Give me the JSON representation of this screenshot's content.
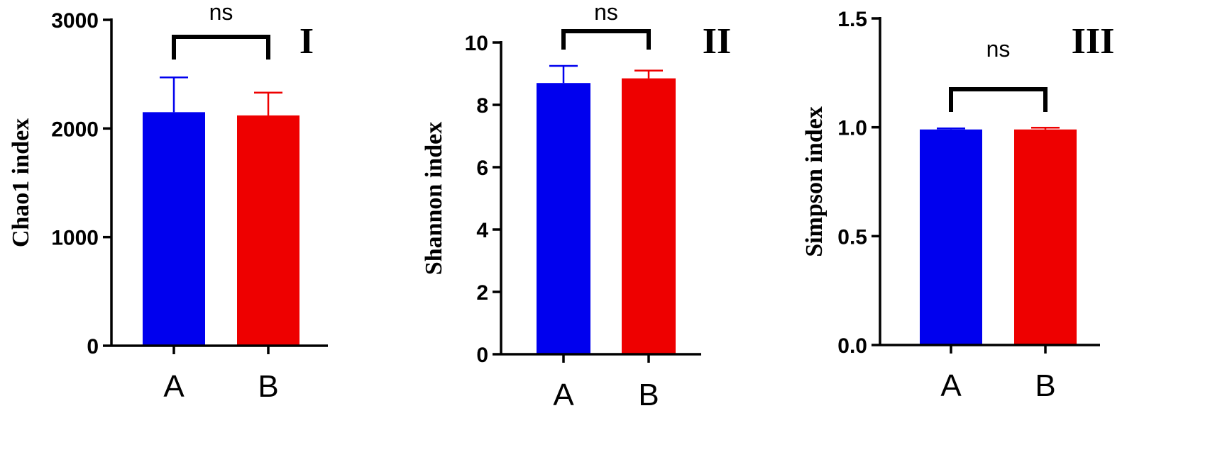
{
  "chart_data": [
    {
      "type": "bar",
      "panel_label": "I",
      "ylabel": "Chao1 index",
      "ylim": [
        0,
        3000
      ],
      "yticks": [
        0,
        1000,
        2000,
        3000
      ],
      "ytick_labels": [
        "0",
        "1000",
        "2000",
        "3000"
      ],
      "categories": [
        "A",
        "B"
      ],
      "values": [
        2150,
        2120
      ],
      "errors": [
        320,
        210
      ],
      "colors": [
        "#0000ee",
        "#ee0000"
      ],
      "significance": {
        "text": "ns",
        "between": [
          "A",
          "B"
        ]
      },
      "grid": false
    },
    {
      "type": "bar",
      "panel_label": "II",
      "ylabel": "Shannon index",
      "ylim": [
        0,
        10
      ],
      "yticks": [
        0,
        2,
        4,
        6,
        8,
        10
      ],
      "ytick_labels": [
        "0",
        "2",
        "4",
        "6",
        "8",
        "10"
      ],
      "categories": [
        "A",
        "B"
      ],
      "values": [
        8.7,
        8.85
      ],
      "errors": [
        0.55,
        0.25
      ],
      "colors": [
        "#0000ee",
        "#ee0000"
      ],
      "significance": {
        "text": "ns",
        "between": [
          "A",
          "B"
        ]
      },
      "grid": false
    },
    {
      "type": "bar",
      "panel_label": "III",
      "ylabel": "Simpson index",
      "ylim": [
        0,
        1.5
      ],
      "yticks": [
        0,
        0.5,
        1.0,
        1.5
      ],
      "ytick_labels": [
        "0.0",
        "0.5",
        "1.0",
        "1.5"
      ],
      "categories": [
        "A",
        "B"
      ],
      "values": [
        0.99,
        0.99
      ],
      "errors": [
        0.005,
        0.008
      ],
      "colors": [
        "#0000ee",
        "#ee0000"
      ],
      "significance": {
        "text": "ns",
        "between": [
          "A",
          "B"
        ],
        "level": 1.18
      },
      "grid": false
    }
  ]
}
